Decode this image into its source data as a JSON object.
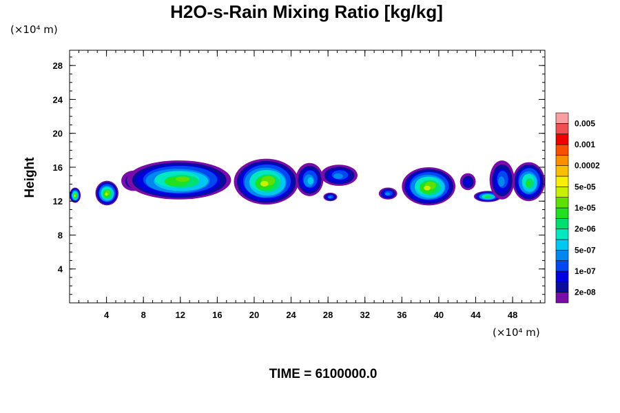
{
  "chart_data": {
    "type": "heatmap",
    "title": "H2O-s-Rain Mixing Ratio [kg/kg]",
    "xlabel": "",
    "ylabel": "Height",
    "x_unit_label": "(×10⁴ m)",
    "y_unit_label": "(×10⁴ m)",
    "xlim": [
      0,
      51.5
    ],
    "ylim": [
      0,
      29.8
    ],
    "x_ticks": [
      4,
      8,
      12,
      16,
      20,
      24,
      28,
      32,
      36,
      40,
      44,
      48
    ],
    "y_ticks": [
      4,
      8,
      12,
      16,
      20,
      24,
      28
    ],
    "grid": false,
    "colorbar": {
      "placement": "right",
      "colors": [
        "#7a0ca8",
        "#0b0b9c",
        "#0000e0",
        "#0048f0",
        "#0088f0",
        "#00c8f0",
        "#00e8c0",
        "#00e070",
        "#20e020",
        "#60e000",
        "#c8f000",
        "#f8f000",
        "#f8c000",
        "#f89000",
        "#f85000",
        "#f00000",
        "#f05050",
        "#f8a0a0"
      ],
      "labels": [
        "2e-08",
        "1e-07",
        "5e-07",
        "2e-06",
        "1e-05",
        "5e-05",
        "0.0002",
        "0.001",
        "0.005"
      ]
    },
    "footer": "TIME = 6100000.0",
    "clouds": [
      {
        "x": [
          0,
          1.2
        ],
        "y": [
          11.8,
          13.6
        ],
        "max_level": 10
      },
      {
        "x": [
          2.8,
          5.3
        ],
        "y": [
          11.5,
          14.4
        ],
        "max_level": 10
      },
      {
        "x": [
          5.6,
          8.3
        ],
        "y": [
          13.2,
          15.6
        ],
        "max_level": 2
      },
      {
        "x": [
          6.2,
          17.5
        ],
        "y": [
          12.2,
          16.8
        ],
        "max_level": 9
      },
      {
        "x": [
          17.8,
          24.8
        ],
        "y": [
          11.6,
          17.0
        ],
        "max_level": 10
      },
      {
        "x": [
          24.5,
          27.5
        ],
        "y": [
          12.6,
          16.5
        ],
        "max_level": 5
      },
      {
        "x": [
          27.2,
          31.2
        ],
        "y": [
          13.8,
          16.3
        ],
        "max_level": 4
      },
      {
        "x": [
          27.5,
          29.0
        ],
        "y": [
          12.0,
          13.0
        ],
        "max_level": 4
      },
      {
        "x": [
          33.5,
          35.5
        ],
        "y": [
          12.2,
          13.6
        ],
        "max_level": 4
      },
      {
        "x": [
          36.0,
          41.8
        ],
        "y": [
          11.5,
          16.0
        ],
        "max_level": 10
      },
      {
        "x": [
          42.3,
          44.0
        ],
        "y": [
          13.3,
          15.3
        ],
        "max_level": 2
      },
      {
        "x": [
          43.8,
          46.8
        ],
        "y": [
          11.9,
          13.2
        ],
        "max_level": 8
      },
      {
        "x": [
          45.5,
          48.2
        ],
        "y": [
          12.2,
          16.8
        ],
        "max_level": 4
      },
      {
        "x": [
          48.0,
          51.5
        ],
        "y": [
          12.0,
          16.6
        ],
        "max_level": 8
      }
    ]
  }
}
